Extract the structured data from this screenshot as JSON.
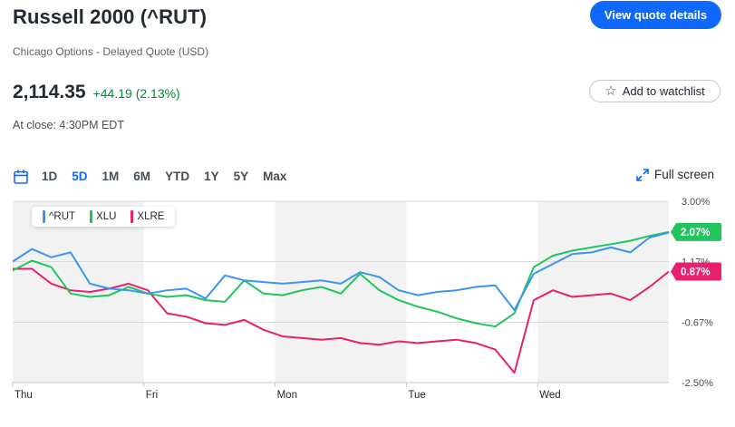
{
  "header": {
    "title": "Russell 2000 (^RUT)",
    "subtitle": "Chicago Options - Delayed Quote (USD)",
    "price": "2,114.35",
    "change": "+44.19 (2.13%)",
    "close_time": "At close: 4:30PM EDT",
    "quote_button": "View quote details",
    "watchlist_button": "Add to watchlist"
  },
  "ranges": [
    "1D",
    "5D",
    "1M",
    "6M",
    "YTD",
    "1Y",
    "5Y",
    "Max"
  ],
  "active_range": "5D",
  "fullscreen_label": "Full screen",
  "colors": {
    "rut": "#3b95f0",
    "xlu": "#21c55d",
    "xlre": "#e8206f",
    "accent": "#0f69ff",
    "positive": "#008a36"
  },
  "chart_data": {
    "type": "line",
    "x_labels": [
      "Thu",
      "Fri",
      "Mon",
      "Tue",
      "Wed"
    ],
    "y_ticks": [
      "3.00%",
      "1.17%",
      "-0.67%",
      "-2.50%"
    ],
    "ylim": [
      -2.5,
      3.0
    ],
    "legend_placement": "top-left",
    "grid": true,
    "value_labels": {
      "xlu": "2.07%",
      "xlre": "0.87%"
    },
    "series": [
      {
        "name": "^RUT",
        "values": [
          1.17,
          1.55,
          1.3,
          1.45,
          0.5,
          0.35,
          0.3,
          0.2,
          0.3,
          0.35,
          0.05,
          0.75,
          0.6,
          0.55,
          0.5,
          0.55,
          0.6,
          0.5,
          0.85,
          0.7,
          0.3,
          0.15,
          0.25,
          0.3,
          0.4,
          0.45,
          -0.3,
          0.8,
          1.1,
          1.4,
          1.45,
          1.6,
          1.45,
          1.9,
          2.05
        ]
      },
      {
        "name": "XLU",
        "values": [
          0.9,
          1.2,
          1.0,
          0.2,
          0.1,
          0.15,
          0.4,
          0.2,
          0.1,
          0.15,
          0.0,
          -0.05,
          0.6,
          0.2,
          0.15,
          0.3,
          0.4,
          0.2,
          0.8,
          0.3,
          0.0,
          -0.2,
          -0.35,
          -0.55,
          -0.7,
          -0.8,
          -0.4,
          1.0,
          1.35,
          1.5,
          1.6,
          1.7,
          1.8,
          1.95,
          2.07
        ]
      },
      {
        "name": "XLRE",
        "values": [
          0.95,
          0.95,
          0.5,
          0.3,
          0.25,
          0.35,
          0.5,
          0.3,
          -0.4,
          -0.5,
          -0.7,
          -0.75,
          -0.6,
          -0.9,
          -1.1,
          -1.15,
          -1.2,
          -1.15,
          -1.3,
          -1.35,
          -1.25,
          -1.3,
          -1.25,
          -1.2,
          -1.3,
          -1.5,
          -2.2,
          0.0,
          0.3,
          0.1,
          0.15,
          0.2,
          0.0,
          0.4,
          0.87
        ]
      }
    ]
  }
}
